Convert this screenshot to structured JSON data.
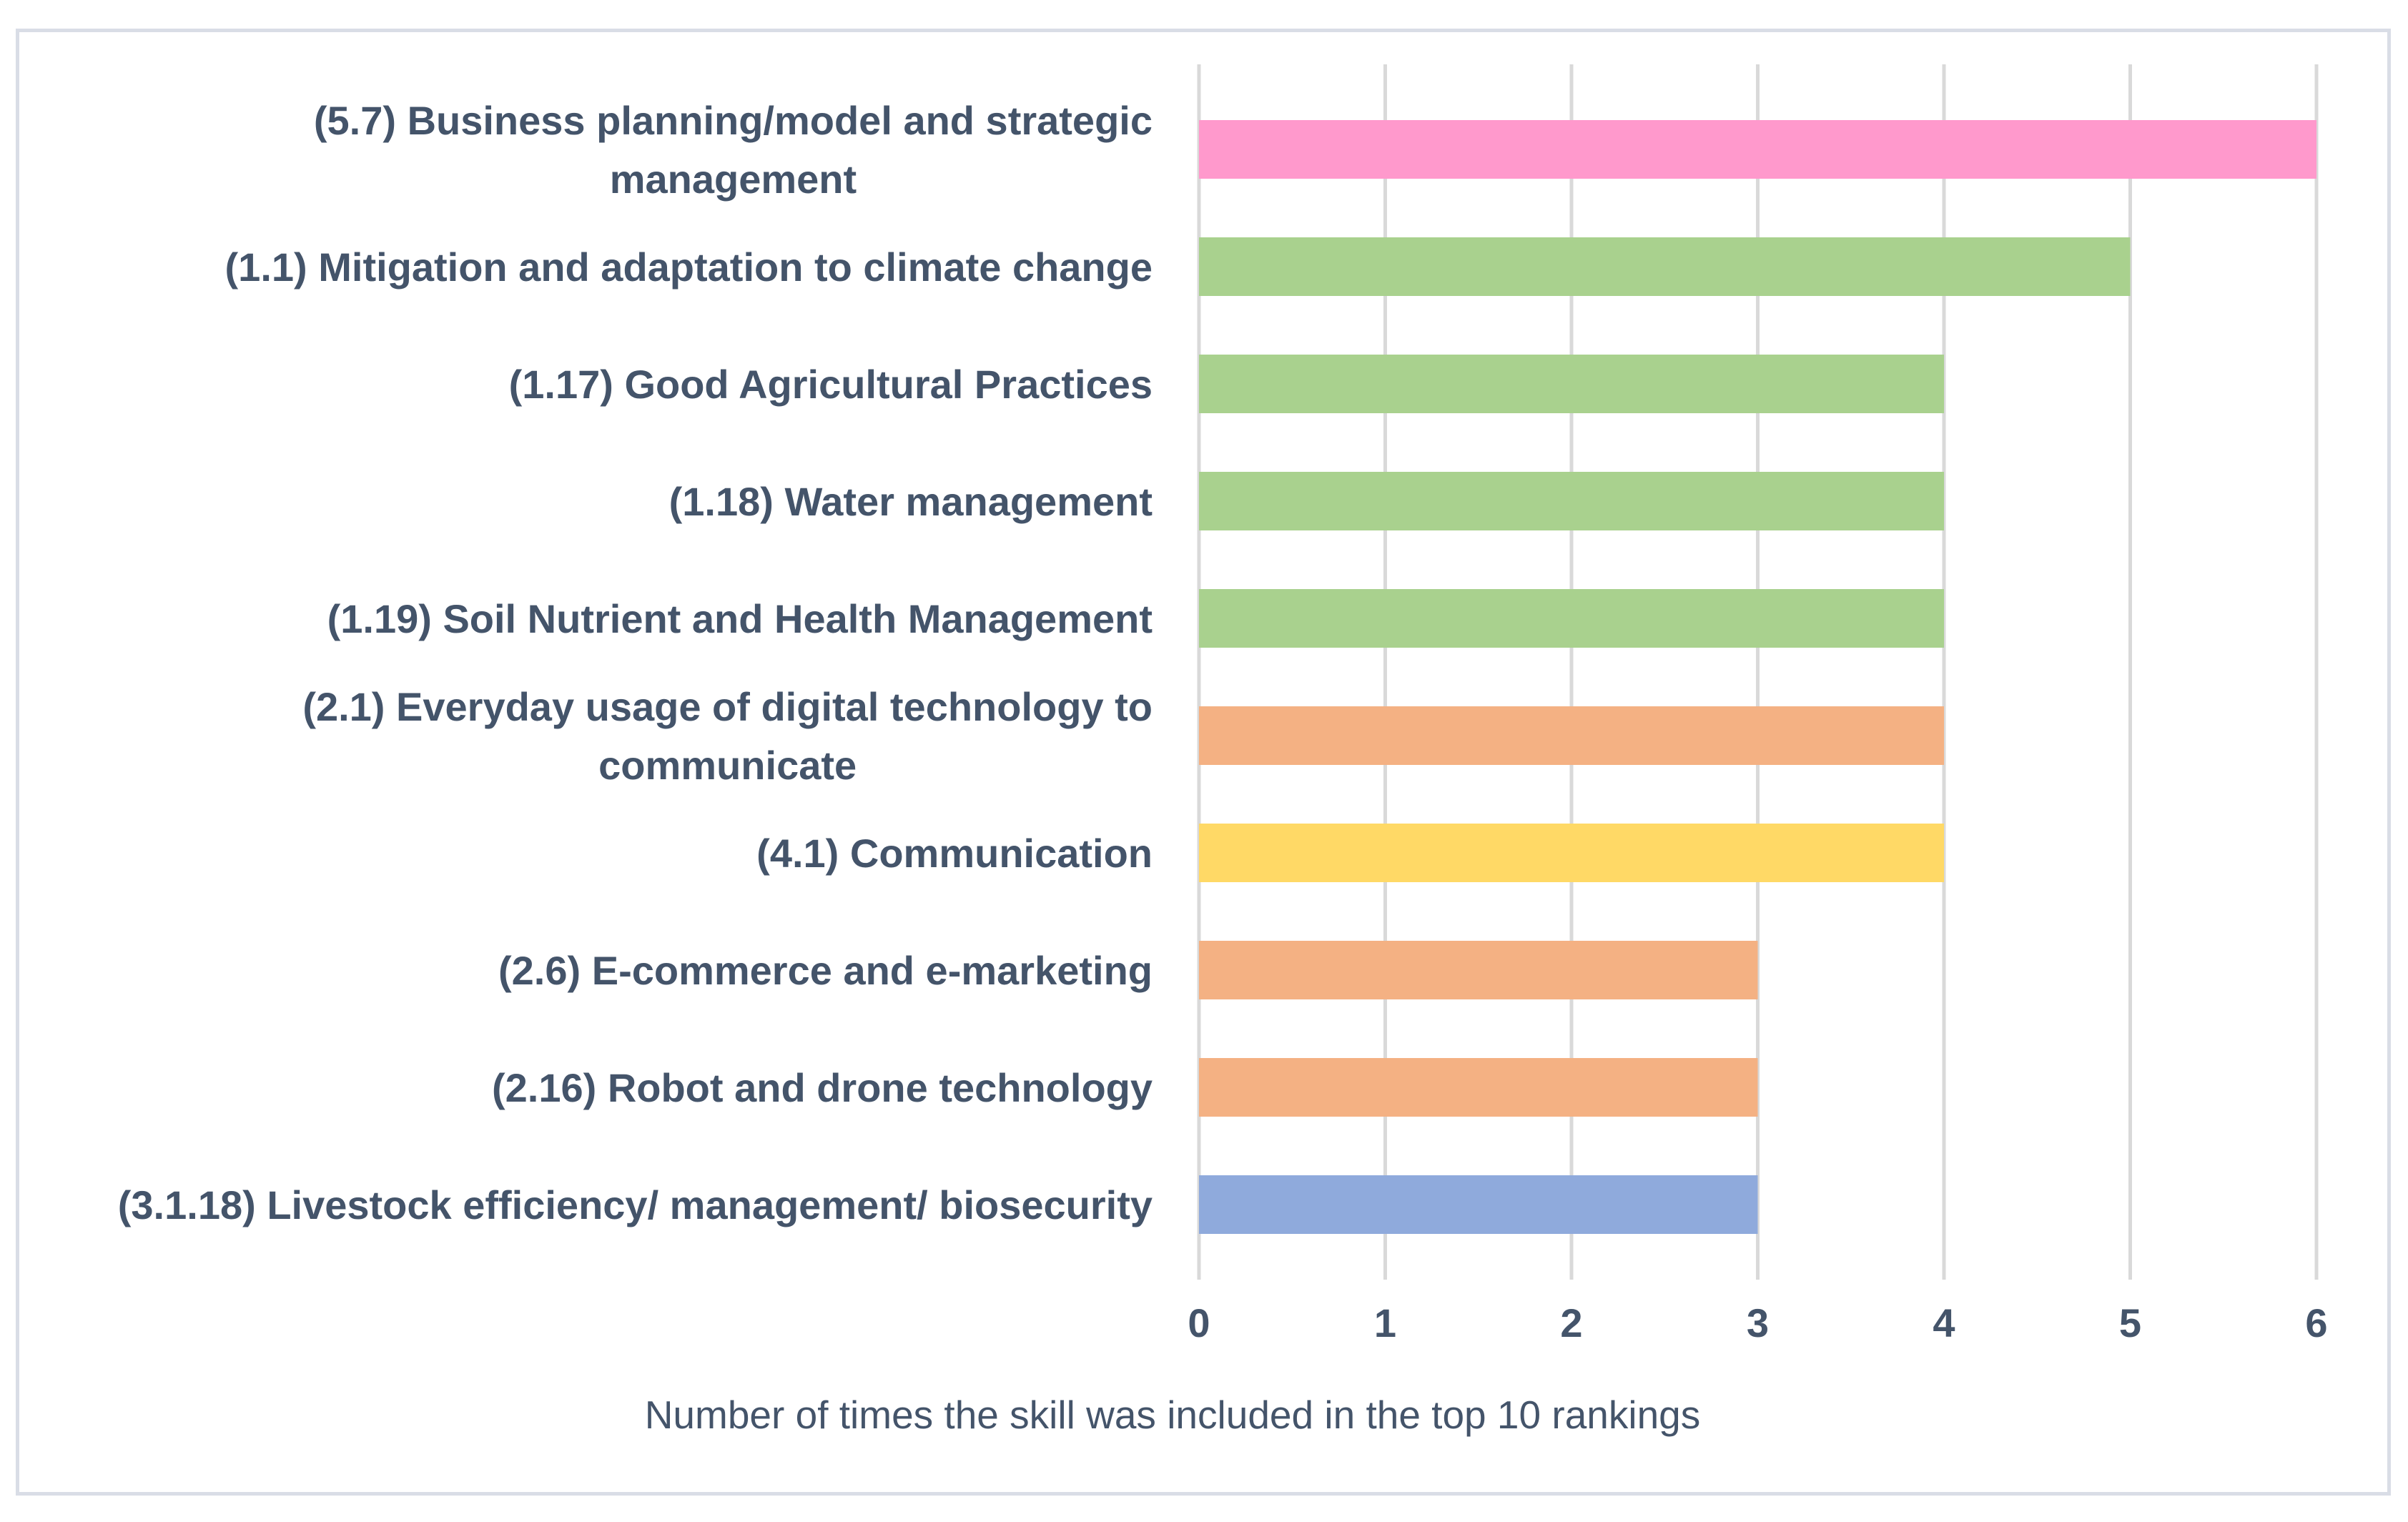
{
  "chart_data": {
    "type": "bar",
    "orientation": "horizontal",
    "title": "",
    "xlabel": "Number of  times the skill was included in the top 10 rankings",
    "ylabel": "",
    "xlim": [
      0,
      6
    ],
    "xticks": [
      "0",
      "1",
      "2",
      "3",
      "4",
      "5",
      "6"
    ],
    "grid": true,
    "legend": "none",
    "categories": [
      {
        "lines": [
          "(5.7) Business planning/model and strategic",
          "management"
        ],
        "value": 6,
        "color": "#ff99cc"
      },
      {
        "lines": [
          "(1.1) Mitigation and adaptation to climate change"
        ],
        "value": 5,
        "color": "#a9d18e"
      },
      {
        "lines": [
          "(1.17) Good Agricultural Practices"
        ],
        "value": 4,
        "color": "#a9d18e"
      },
      {
        "lines": [
          "(1.18) Water management"
        ],
        "value": 4,
        "color": "#a9d18e"
      },
      {
        "lines": [
          "(1.19) Soil Nutrient and Health Management"
        ],
        "value": 4,
        "color": "#a9d18e"
      },
      {
        "lines": [
          "(2.1) Everyday usage of digital technology to",
          "communicate"
        ],
        "value": 4,
        "color": "#f4b183"
      },
      {
        "lines": [
          "(4.1) Communication"
        ],
        "value": 4,
        "color": "#ffd966"
      },
      {
        "lines": [
          "(2.6) E-commerce and e-marketing"
        ],
        "value": 3,
        "color": "#f4b183"
      },
      {
        "lines": [
          "(2.16) Robot and drone technology"
        ],
        "value": 3,
        "color": "#f4b183"
      },
      {
        "lines": [
          "(3.1.18) Livestock efficiency/ management/ biosecurity"
        ],
        "value": 3,
        "color": "#8faadc"
      }
    ]
  }
}
